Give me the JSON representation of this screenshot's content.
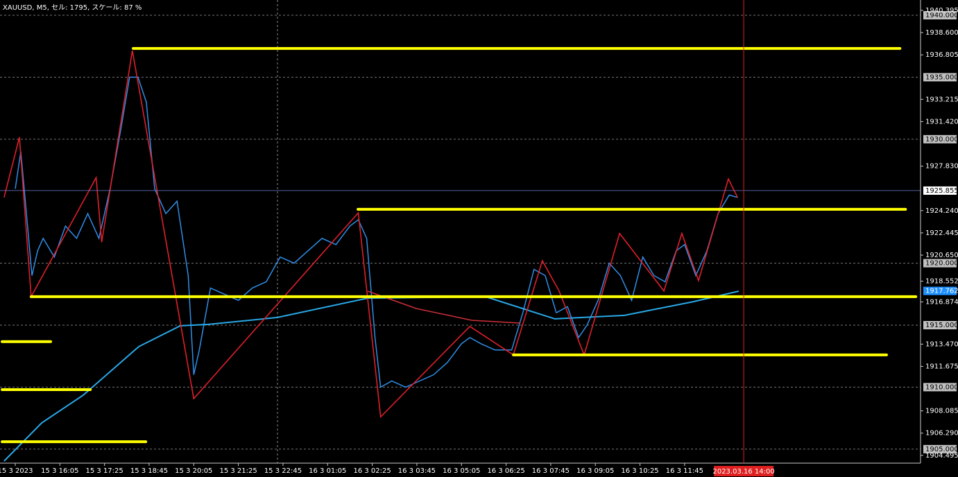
{
  "chart_data": {
    "type": "line",
    "title": "XAUUSD, M5, セル: 1795, スケール: 87 %",
    "xlim": [
      -5.47,
      324.6
    ],
    "ylim": [
      1903.87,
      1941.23
    ],
    "xticks": [
      {
        "value": 0,
        "label": "15 3 2023"
      },
      {
        "value": 16,
        "label": "15 3 16:05"
      },
      {
        "value": 32,
        "label": "15 3 17:25"
      },
      {
        "value": 48,
        "label": "15 3 18:45"
      },
      {
        "value": 64,
        "label": "15 3 20:05"
      },
      {
        "value": 80,
        "label": "15 3 21:25"
      },
      {
        "value": 96,
        "label": "15 3 22:45"
      },
      {
        "value": 112,
        "label": "16 3 01:05"
      },
      {
        "value": 128,
        "label": "16 3 02:25"
      },
      {
        "value": 144,
        "label": "16 3 03:45"
      },
      {
        "value": 160,
        "label": "16 3 05:05"
      },
      {
        "value": 176,
        "label": "16 3 06:25"
      },
      {
        "value": 192,
        "label": "16 3 07:45"
      },
      {
        "value": 208,
        "label": "16 3 09:05"
      },
      {
        "value": 224,
        "label": "16 3 10:25"
      },
      {
        "value": 240,
        "label": "16 3 11:45"
      }
    ],
    "yticks": [
      {
        "value": 1940.395,
        "label": "1940.395"
      },
      {
        "value": 1938.6,
        "label": "1938.600"
      },
      {
        "value": 1936.805,
        "label": "1936.805"
      },
      {
        "value": 1933.215,
        "label": "1933.215"
      },
      {
        "value": 1931.42,
        "label": "1931.420"
      },
      {
        "value": 1927.83,
        "label": "1927.830"
      },
      {
        "value": 1924.24,
        "label": "1924.240"
      },
      {
        "value": 1922.445,
        "label": "1922.445"
      },
      {
        "value": 1920.65,
        "label": "1920.650"
      },
      {
        "value": 1918.552,
        "label": "1918.552"
      },
      {
        "value": 1916.874,
        "label": "1916.874"
      },
      {
        "value": 1913.47,
        "label": "1913.470"
      },
      {
        "value": 1911.675,
        "label": "1911.675"
      },
      {
        "value": 1908.085,
        "label": "1908.085"
      },
      {
        "value": 1906.29,
        "label": "1906.290"
      },
      {
        "value": 1904.495,
        "label": "1904.495"
      }
    ],
    "grid_levels": [
      {
        "value": 1940,
        "label": "1940.000"
      },
      {
        "value": 1935,
        "label": "1935.000"
      },
      {
        "value": 1930,
        "label": "1930.000"
      },
      {
        "value": 1920,
        "label": "1920.000"
      },
      {
        "value": 1915,
        "label": "1915.000"
      },
      {
        "value": 1910,
        "label": "1910.000"
      },
      {
        "value": 1905,
        "label": "1905.000"
      }
    ],
    "price": {
      "color": "#2f8fe8",
      "x": [
        0,
        2,
        4,
        6,
        8,
        10,
        14,
        18,
        22,
        26,
        30,
        34,
        38,
        41,
        44,
        47,
        50,
        54,
        58,
        62,
        64,
        66,
        70,
        75,
        80,
        85,
        90,
        95,
        100,
        105,
        110,
        115,
        120,
        123,
        126,
        129,
        131,
        135,
        140,
        145,
        150,
        155,
        160,
        163,
        167,
        172,
        178,
        182,
        186,
        190,
        194,
        198,
        202,
        205,
        209,
        213,
        217,
        221,
        225,
        229,
        233,
        237,
        240,
        244,
        248,
        252,
        256,
        259
      ],
      "values": [
        1926,
        1929,
        1924,
        1919,
        1921,
        1922,
        1920.5,
        1923,
        1922,
        1924,
        1922,
        1926,
        1931,
        1935,
        1935,
        1933,
        1926,
        1924,
        1925,
        1919,
        1911,
        1913,
        1918,
        1917.5,
        1917,
        1918,
        1918.5,
        1920.5,
        1920,
        1921,
        1922,
        1921.5,
        1923,
        1923.5,
        1922,
        1914,
        1910,
        1910.5,
        1910,
        1910.5,
        1911,
        1912,
        1913.5,
        1914,
        1913.5,
        1913,
        1913,
        1916,
        1919.5,
        1919,
        1916,
        1916.5,
        1914,
        1915,
        1917,
        1920,
        1919,
        1917,
        1920.5,
        1919,
        1918.5,
        1921,
        1921.5,
        1919,
        1921,
        1924,
        1925.5,
        1925.3
      ]
    },
    "zigzag": {
      "color": "#e0202a",
      "x": [
        -4,
        1.5,
        5.7,
        29,
        31,
        42,
        64,
        123,
        131,
        163,
        178.6,
        189,
        195,
        204,
        216.7,
        232.6,
        239,
        245,
        255.7,
        259
      ],
      "values": [
        1925.3,
        1930.16,
        1917.3,
        1926.9,
        1921.7,
        1937.15,
        1909.07,
        1924.06,
        1907.6,
        1914.9,
        1912.6,
        1920.2,
        1917.75,
        1912.6,
        1922.4,
        1917.75,
        1922.4,
        1918.6,
        1926.8,
        1925.3
      ]
    },
    "ma": {
      "color": "#29a9e8",
      "x": [
        -4,
        9.5,
        24.4,
        44.3,
        59.2,
        69.2,
        94,
        126.4,
        168.7,
        193.5,
        218.4,
        243.3,
        259.4
      ],
      "values": [
        1904.04,
        1907.12,
        1909.36,
        1913.27,
        1914.95,
        1915.06,
        1915.62,
        1917.18,
        1917.29,
        1915.51,
        1915.79,
        1916.9,
        1917.74
      ]
    },
    "ma2": {
      "color": "#d0303a",
      "x": [
        126.4,
        143.8,
        163.7,
        181.1
      ],
      "values": [
        1917.74,
        1916.34,
        1915.39,
        1915.17
      ]
    },
    "level_color": "#ffff00",
    "levels": [
      {
        "value": 1937.32,
        "from": 42.3,
        "to": 317.2
      },
      {
        "value": 1924.35,
        "from": 122.9,
        "to": 319.2
      },
      {
        "value": 1917.3,
        "from": 5.7,
        "to": 322.9
      },
      {
        "value": 1912.6,
        "from": 178.6,
        "to": 312.4
      },
      {
        "value": 1913.67,
        "from": -4.7,
        "to": 12.7
      },
      {
        "value": 1909.8,
        "from": -4.7,
        "to": 26.9
      },
      {
        "value": 1905.6,
        "from": -4.7,
        "to": 46.8
      }
    ],
    "last_price": {
      "value": 1925.855,
      "label": "1925.855"
    },
    "ma_price": {
      "value": 1917.762,
      "label": "1917.762"
    },
    "cursor": {
      "value": 261.2,
      "label": "2023.03.16 14:00"
    }
  }
}
